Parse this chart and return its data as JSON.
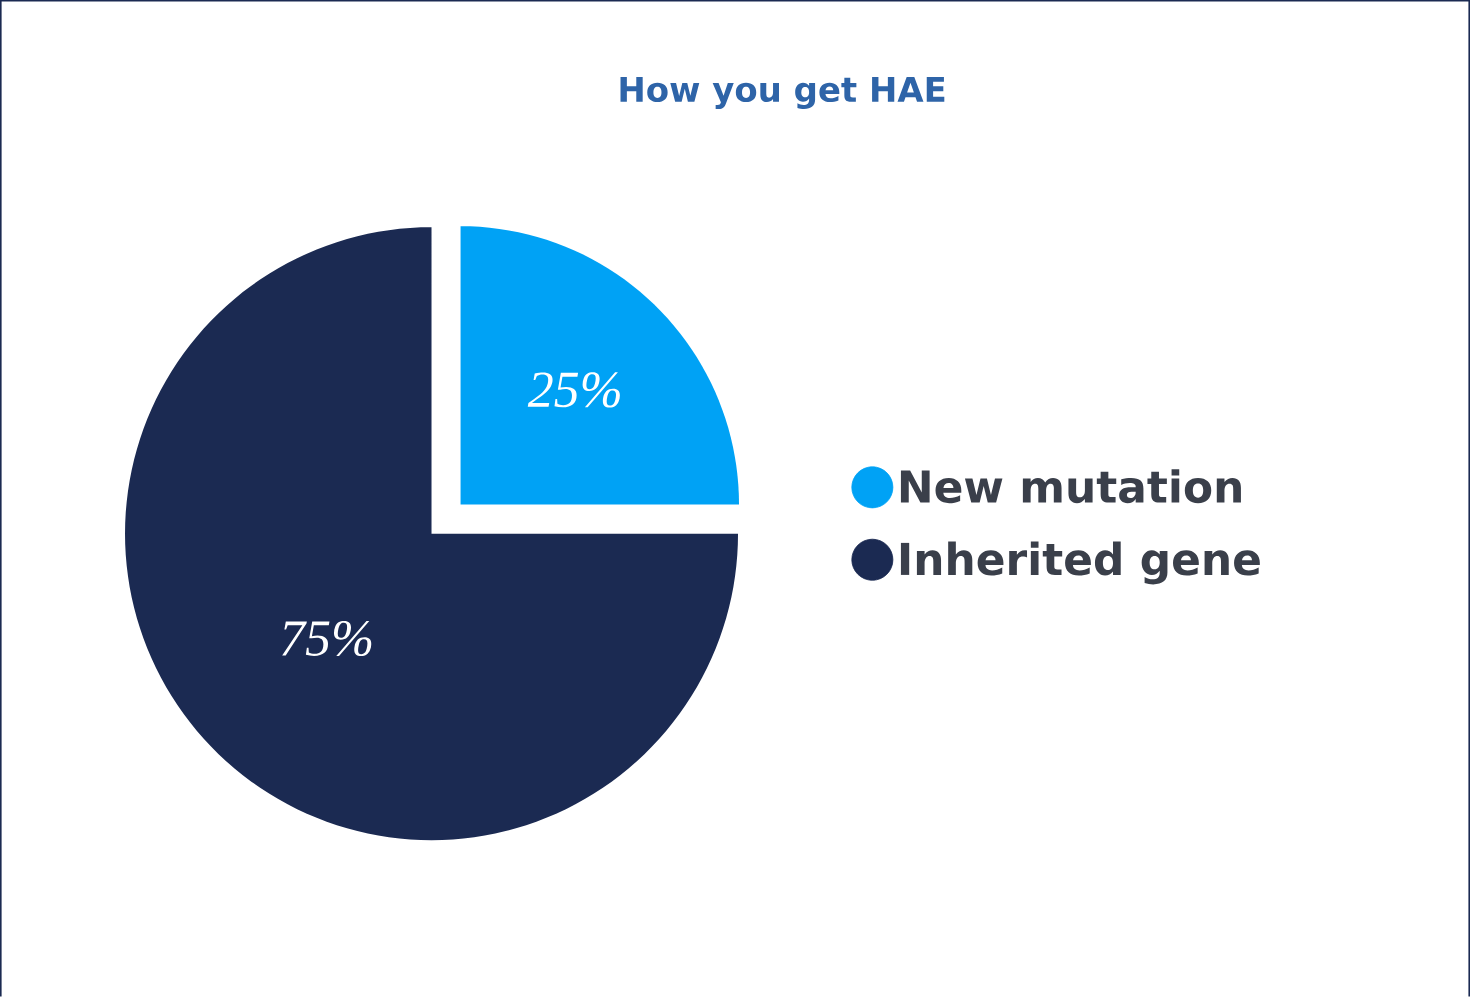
{
  "chart_data": {
    "type": "pie",
    "title": "How you get HAE",
    "categories": [
      "New mutation",
      "Inherited gene"
    ],
    "values": [
      25,
      75
    ],
    "colors": [
      "#00a2f5",
      "#1b2a52"
    ],
    "value_labels": [
      "25%",
      "75%"
    ],
    "legend": "right"
  }
}
